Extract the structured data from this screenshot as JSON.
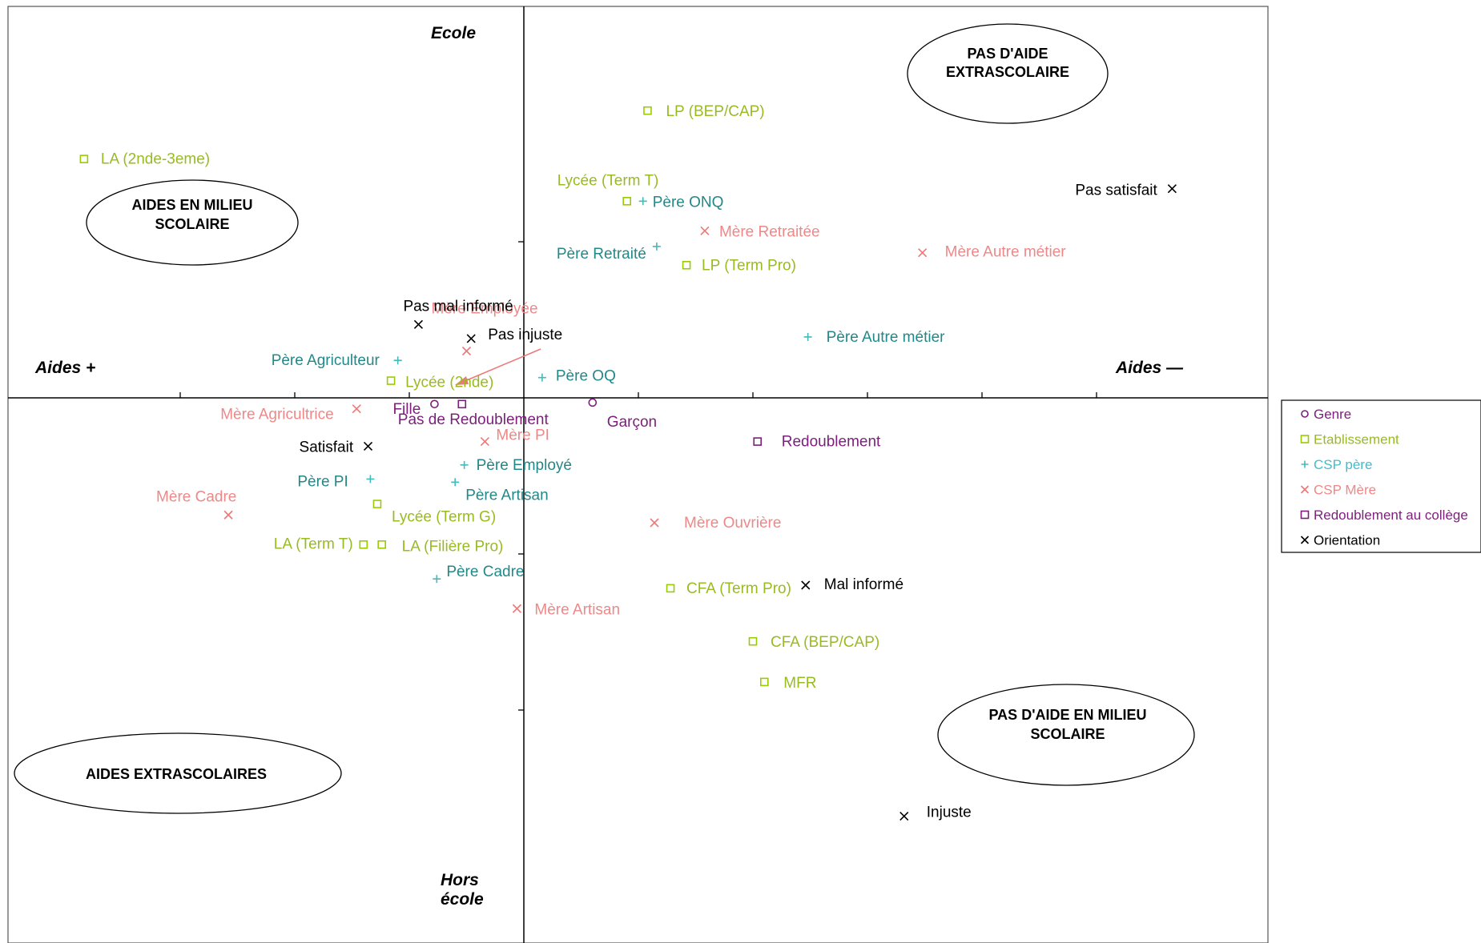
{
  "chart_data": {
    "type": "scatter",
    "title": "",
    "xlabel": "",
    "ylabel": "",
    "axis_labels": {
      "left": "Aides +",
      "right": "Aides —",
      "top": "Ecole",
      "bottom_line1": "Hors",
      "bottom_line2": "école"
    },
    "zones": [
      {
        "id": "top-right",
        "line1": "PAS D'AIDE",
        "line2": "EXTRASCOLAIRE"
      },
      {
        "id": "top-left",
        "line1": "AIDES EN MILIEU",
        "line2": "SCOLAIRE"
      },
      {
        "id": "bottom-left",
        "line1": "AIDES EXTRASCOLAIRES",
        "line2": ""
      },
      {
        "id": "bottom-right",
        "line1": "PAS D'AIDE EN MILIEU",
        "line2": "SCOLAIRE"
      }
    ],
    "grid": false,
    "legend_position": "right",
    "series": [
      {
        "name": "Genre",
        "marker": "circle",
        "color": "#7b1f7b",
        "label_color": "#7b1f7b",
        "points": [
          {
            "label": "Fille",
            "x": -0.39,
            "y": -0.04
          },
          {
            "label": "Garçon",
            "x": 0.3,
            "y": -0.03
          }
        ]
      },
      {
        "name": "Etablissement",
        "marker": "square",
        "color": "#99cc00",
        "label_color": "#99bb22",
        "points": [
          {
            "label": "LP (BEP/CAP)",
            "x": 0.54,
            "y": 1.84
          },
          {
            "label": "LA (2nde-3eme)",
            "x": -1.92,
            "y": 1.53
          },
          {
            "label": "Lycée (Term T)",
            "x": 0.45,
            "y": 1.26
          },
          {
            "label": "LP (Term Pro)",
            "x": 0.71,
            "y": 0.85
          },
          {
            "label": "Lycée (2nde)",
            "x": -0.58,
            "y": 0.11
          },
          {
            "label": "Lycée (Term G)",
            "x": -0.64,
            "y": -0.68
          },
          {
            "label": "LA (Term T)",
            "x": -0.7,
            "y": -0.94
          },
          {
            "label": "LA (Filière Pro)",
            "x": -0.62,
            "y": -0.94
          },
          {
            "label": "CFA (Term Pro)",
            "x": 0.64,
            "y": -1.22
          },
          {
            "label": "CFA (BEP/CAP)",
            "x": 1.0,
            "y": -1.56
          },
          {
            "label": "MFR",
            "x": 1.05,
            "y": -1.82
          }
        ]
      },
      {
        "name": "CSP père",
        "marker": "plus",
        "color": "#44bbbb",
        "label_color": "#228888",
        "points": [
          {
            "label": "Père ONQ",
            "x": 0.52,
            "y": 1.26
          },
          {
            "label": "Père Retraité",
            "x": 0.58,
            "y": 0.97
          },
          {
            "label": "Père Agriculteur",
            "x": -0.55,
            "y": 0.24
          },
          {
            "label": "Père Autre métier",
            "x": 1.24,
            "y": 0.39
          },
          {
            "label": "Père OQ",
            "x": 0.08,
            "y": 0.13
          },
          {
            "label": "Père Employé",
            "x": -0.26,
            "y": -0.43
          },
          {
            "label": "Père Artisan",
            "x": -0.3,
            "y": -0.54
          },
          {
            "label": "Père PI",
            "x": -0.67,
            "y": -0.52
          },
          {
            "label": "Père Cadre",
            "x": -0.38,
            "y": -1.16
          }
        ]
      },
      {
        "name": "CSP Mère",
        "marker": "cross",
        "color": "#ee7777",
        "label_color": "#ee8888",
        "points": [
          {
            "label": "Mère Retraitée",
            "x": 0.79,
            "y": 1.07
          },
          {
            "label": "Mère Autre métier",
            "x": 1.74,
            "y": 0.93
          },
          {
            "label": "Mère Employée",
            "x": -0.25,
            "y": 0.3
          },
          {
            "label": "Mère Agricultrice",
            "x": -0.73,
            "y": -0.07
          },
          {
            "label": "Mère PI",
            "x": -0.17,
            "y": -0.28
          },
          {
            "label": "Mère Cadre",
            "x": -1.29,
            "y": -0.75
          },
          {
            "label": "Mère Ouvrière",
            "x": 0.57,
            "y": -0.8
          },
          {
            "label": "Mère Artisan",
            "x": -0.03,
            "y": -1.35
          }
        ]
      },
      {
        "name": "Redoublement au collège",
        "marker": "square",
        "color": "#7b1f7b",
        "label_color": "#7b1f7b",
        "points": [
          {
            "label": "Pas de Redoublement",
            "x": -0.27,
            "y": -0.04
          },
          {
            "label": "Redoublement",
            "x": 1.02,
            "y": -0.28
          }
        ]
      },
      {
        "name": "Orientation",
        "marker": "cross",
        "color": "#000000",
        "label_color": "#000000",
        "points": [
          {
            "label": "Pas satisfait",
            "x": 2.83,
            "y": 1.34
          },
          {
            "label": "Pas mal informé",
            "x": -0.46,
            "y": 0.47
          },
          {
            "label": "Pas injuste",
            "x": -0.23,
            "y": 0.38
          },
          {
            "label": "Satisfait",
            "x": -0.68,
            "y": -0.31
          },
          {
            "label": "Mal informé",
            "x": 1.23,
            "y": -1.2
          },
          {
            "label": "Injuste",
            "x": 1.66,
            "y": -2.68
          }
        ]
      }
    ]
  }
}
